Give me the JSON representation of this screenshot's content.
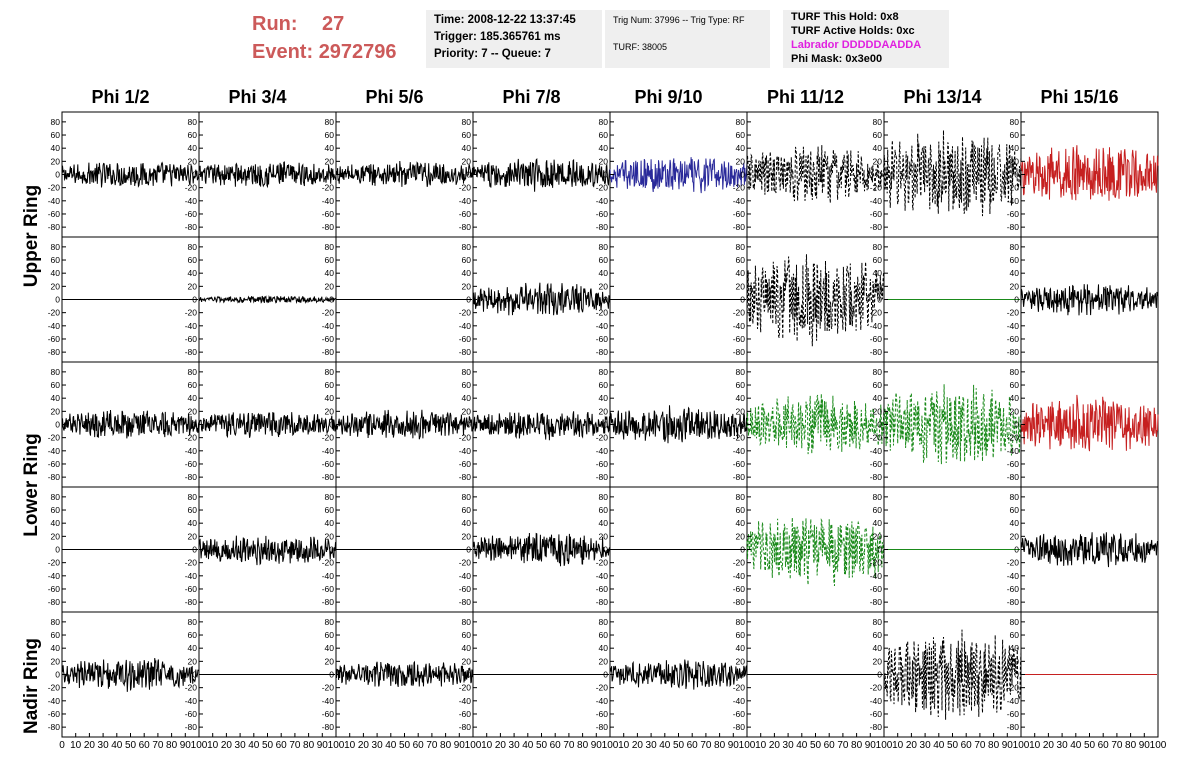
{
  "header": {
    "run_label": "Run:",
    "run_value": "27",
    "event_label": "Event:",
    "event_value": "2972796",
    "time": "Time: 2008-12-22 13:37:45",
    "trigger": "Trigger: 185.365761 ms",
    "priority": "Priority: 7 -- Queue: 7",
    "trig_num": "Trig Num: 37996 -- Trig Type: RF",
    "turf": "TURF: 38005",
    "turf_this_hold": "TURF This Hold: 0x8",
    "turf_active_holds": "TURF Active Holds: 0xc",
    "labrador": "Labrador DDDDDAADDA",
    "phi_mask": "Phi Mask: 0x3e00"
  },
  "columns": [
    "Phi 1/2",
    "Phi 3/4",
    "Phi 5/6",
    "Phi 7/8",
    "Phi 9/10",
    "Phi 11/12",
    "Phi 13/14",
    "Phi 15/16"
  ],
  "rings": [
    "Upper Ring",
    "Lower Ring",
    "Nadir Ring"
  ],
  "y_ticks": [
    "80",
    "60",
    "40",
    "20",
    "0",
    "-20",
    "-40",
    "-60",
    "-80"
  ],
  "x_ticks_first": [
    "0",
    "10",
    "20",
    "30",
    "40",
    "50",
    "60",
    "70",
    "80",
    "90",
    "100"
  ],
  "x_ticks_other": [
    "10",
    "20",
    "30",
    "40",
    "50",
    "60",
    "70",
    "80",
    "90",
    "100"
  ],
  "colors": {
    "black": "#000000",
    "blue": "#2a2a9a",
    "red": "#c62020",
    "green": "#1a8a1a",
    "header_red": "#cc5a5a",
    "magenta": "#e020e0"
  },
  "chart_data": {
    "type": "line",
    "xlim": [
      0,
      100
    ],
    "ylim": [
      -95,
      95
    ],
    "panels": [
      {
        "row": 0,
        "col": 0,
        "color": "black",
        "style": "solid",
        "amp": 18
      },
      {
        "row": 0,
        "col": 1,
        "color": "black",
        "style": "solid",
        "amp": 18
      },
      {
        "row": 0,
        "col": 2,
        "color": "black",
        "style": "solid",
        "amp": 18
      },
      {
        "row": 0,
        "col": 3,
        "color": "black",
        "style": "solid",
        "amp": 22
      },
      {
        "row": 0,
        "col": 4,
        "color": "blue",
        "style": "solid",
        "amp": 25
      },
      {
        "row": 0,
        "col": 5,
        "color": "black",
        "style": "dashed",
        "amp": 40
      },
      {
        "row": 0,
        "col": 6,
        "color": "black",
        "style": "dashed",
        "amp": 60
      },
      {
        "row": 0,
        "col": 7,
        "color": "red",
        "style": "solid",
        "amp": 40
      },
      {
        "row": 1,
        "col": 0,
        "color": "black",
        "style": "flat",
        "amp": 0
      },
      {
        "row": 1,
        "col": 1,
        "color": "black",
        "style": "solid",
        "amp": 5
      },
      {
        "row": 1,
        "col": 2,
        "color": "black",
        "style": "flat",
        "amp": 0
      },
      {
        "row": 1,
        "col": 3,
        "color": "black",
        "style": "solid",
        "amp": 22
      },
      {
        "row": 1,
        "col": 4,
        "color": "black",
        "style": "flat",
        "amp": 0
      },
      {
        "row": 1,
        "col": 5,
        "color": "black",
        "style": "dashed",
        "amp": 60
      },
      {
        "row": 1,
        "col": 6,
        "color": "green",
        "style": "flat",
        "amp": 0
      },
      {
        "row": 1,
        "col": 7,
        "color": "black",
        "style": "solid",
        "amp": 22
      },
      {
        "row": 2,
        "col": 0,
        "color": "black",
        "style": "solid",
        "amp": 20
      },
      {
        "row": 2,
        "col": 1,
        "color": "black",
        "style": "solid",
        "amp": 18
      },
      {
        "row": 2,
        "col": 2,
        "color": "black",
        "style": "solid",
        "amp": 20
      },
      {
        "row": 2,
        "col": 3,
        "color": "black",
        "style": "solid",
        "amp": 20
      },
      {
        "row": 2,
        "col": 4,
        "color": "black",
        "style": "solid",
        "amp": 25
      },
      {
        "row": 2,
        "col": 5,
        "color": "green",
        "style": "dashed",
        "amp": 40
      },
      {
        "row": 2,
        "col": 6,
        "color": "green",
        "style": "dashed",
        "amp": 55
      },
      {
        "row": 2,
        "col": 7,
        "color": "red",
        "style": "solid",
        "amp": 40
      },
      {
        "row": 3,
        "col": 0,
        "color": "black",
        "style": "flat",
        "amp": 0
      },
      {
        "row": 3,
        "col": 1,
        "color": "black",
        "style": "solid",
        "amp": 20
      },
      {
        "row": 3,
        "col": 2,
        "color": "black",
        "style": "flat",
        "amp": 0
      },
      {
        "row": 3,
        "col": 3,
        "color": "black",
        "style": "solid",
        "amp": 22
      },
      {
        "row": 3,
        "col": 4,
        "color": "black",
        "style": "flat",
        "amp": 0
      },
      {
        "row": 3,
        "col": 5,
        "color": "green",
        "style": "dashed",
        "amp": 50
      },
      {
        "row": 3,
        "col": 6,
        "color": "green",
        "style": "flat",
        "amp": 0
      },
      {
        "row": 3,
        "col": 7,
        "color": "black",
        "style": "solid",
        "amp": 25
      },
      {
        "row": 4,
        "col": 0,
        "color": "black",
        "style": "solid",
        "amp": 22
      },
      {
        "row": 4,
        "col": 1,
        "color": "black",
        "style": "flat",
        "amp": 0
      },
      {
        "row": 4,
        "col": 2,
        "color": "black",
        "style": "solid",
        "amp": 18
      },
      {
        "row": 4,
        "col": 3,
        "color": "black",
        "style": "flat",
        "amp": 0
      },
      {
        "row": 4,
        "col": 4,
        "color": "black",
        "style": "solid",
        "amp": 20
      },
      {
        "row": 4,
        "col": 5,
        "color": "black",
        "style": "flat",
        "amp": 0
      },
      {
        "row": 4,
        "col": 6,
        "color": "black",
        "style": "dashed",
        "amp": 60
      },
      {
        "row": 4,
        "col": 7,
        "color": "red",
        "style": "flat",
        "amp": 0
      }
    ]
  }
}
